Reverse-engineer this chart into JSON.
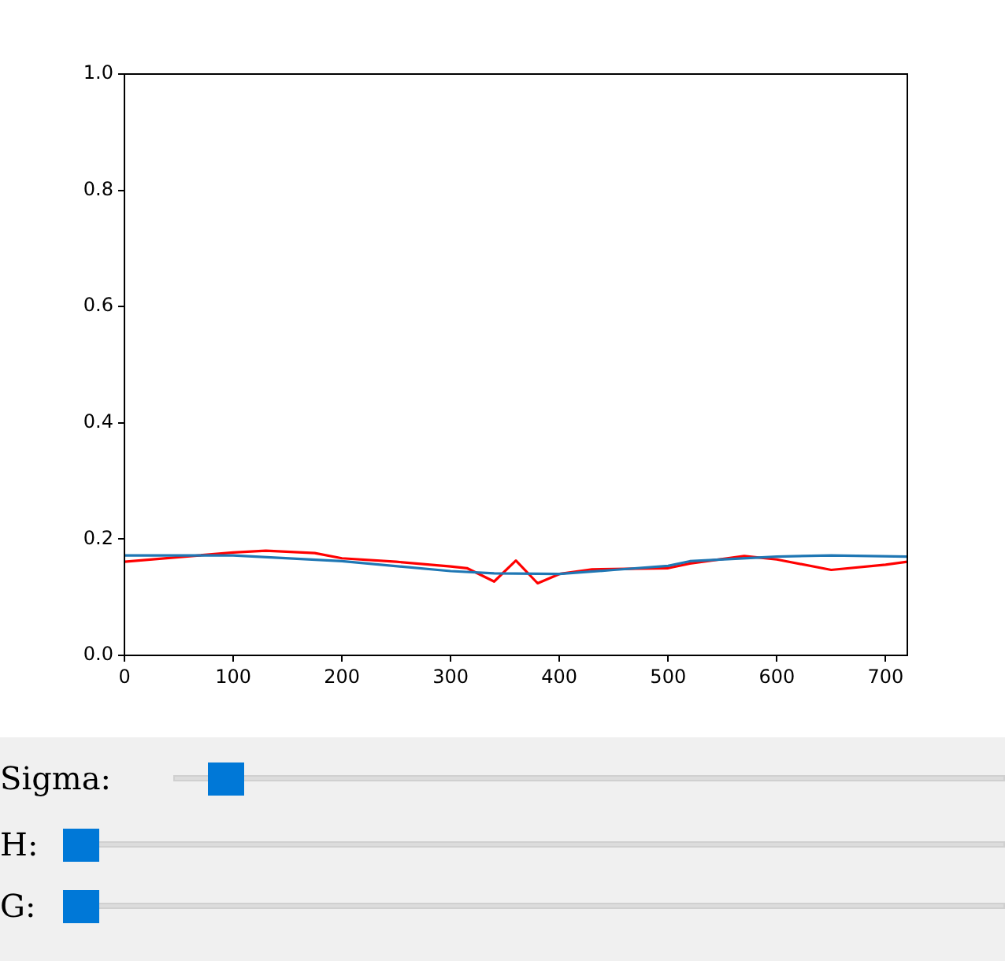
{
  "chart_data": {
    "type": "line",
    "xlim": [
      0,
      720
    ],
    "ylim": [
      0,
      1
    ],
    "xticks": [
      0,
      100,
      200,
      300,
      400,
      500,
      600,
      700
    ],
    "yticks": [
      {
        "value": 0,
        "label": "0.0"
      },
      0.2,
      0.4,
      0.6,
      0.8,
      {
        "value": 1,
        "label": "1.0"
      }
    ],
    "grid": false,
    "legend": false,
    "marker": "none",
    "line_style": "solid",
    "series": [
      {
        "color": "#1f77b4",
        "x": [
          0,
          100,
          200,
          300,
          340,
          400,
          450,
          500,
          520,
          600,
          650,
          720
        ],
        "values": [
          0.172,
          0.172,
          0.162,
          0.145,
          0.141,
          0.14,
          0.147,
          0.154,
          0.162,
          0.17,
          0.172,
          0.17
        ]
      },
      {
        "color": "#ff0000",
        "x": [
          0,
          100,
          130,
          175,
          200,
          250,
          300,
          315,
          340,
          360,
          380,
          400,
          430,
          500,
          520,
          570,
          600,
          650,
          700,
          720
        ],
        "values": [
          0.161,
          0.177,
          0.18,
          0.176,
          0.167,
          0.161,
          0.153,
          0.15,
          0.127,
          0.163,
          0.124,
          0.14,
          0.148,
          0.15,
          0.158,
          0.171,
          0.165,
          0.147,
          0.156,
          0.161
        ]
      }
    ],
    "annotations": [
      "Sigma:",
      "H:",
      "G:"
    ]
  }
}
